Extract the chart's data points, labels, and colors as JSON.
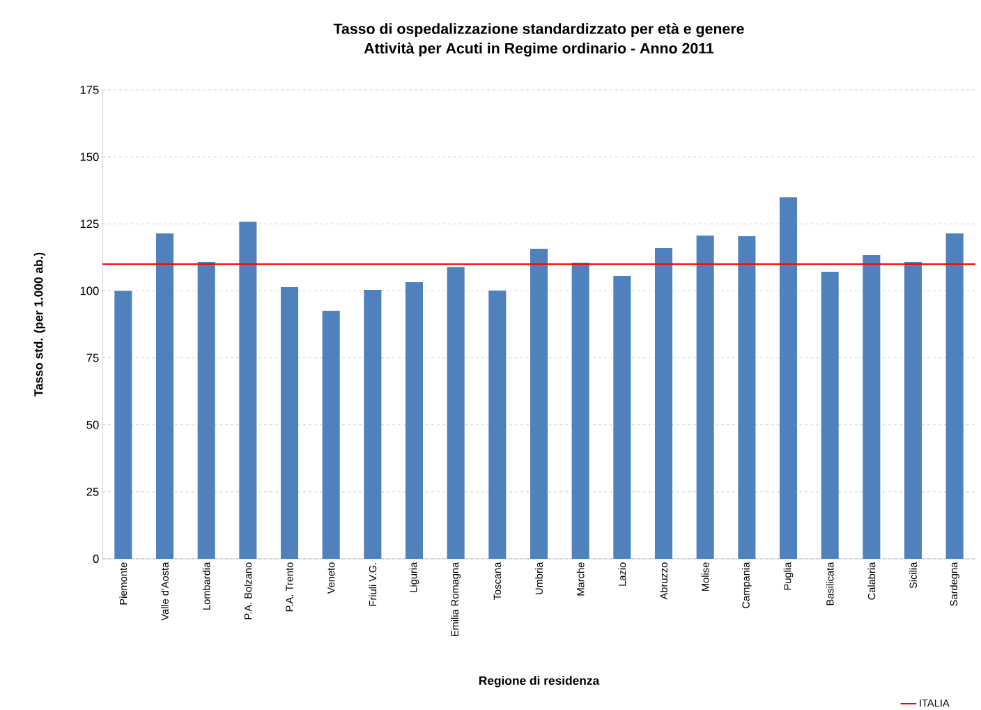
{
  "chart_data": {
    "type": "bar",
    "title": "Tasso di ospedalizzazione standardizzato per età e genere",
    "subtitle": "Attività per Acuti in Regime ordinario - Anno 2011",
    "xlabel": "Regione di residenza",
    "ylabel": "Tasso std. (per 1.000 ab.)",
    "categories": [
      "Piemonte",
      "Valle d'Aosta",
      "Lombardia",
      "P.A. Bolzano",
      "P.A. Trento",
      "Veneto",
      "Friuli V.G.",
      "Liguria",
      "Emilia Romagna",
      "Toscana",
      "Umbria",
      "Marche",
      "Lazio",
      "Abruzzo",
      "Molise",
      "Campania",
      "Puglia",
      "Basilicata",
      "Calabria",
      "Sicilia",
      "Sardegna"
    ],
    "values": [
      100,
      121.4,
      110.8,
      125.8,
      101.4,
      92.6,
      100.4,
      103.2,
      108.9,
      100.1,
      115.7,
      110.5,
      105.6,
      116,
      120.6,
      120.4,
      134.9,
      107.1,
      113.4,
      110.8,
      121.4
    ],
    "color": "#4f81bd",
    "ylim": [
      0,
      175
    ],
    "yticks": [
      0,
      25,
      50,
      75,
      100,
      125,
      150,
      175
    ],
    "grid": "y",
    "ref_lines": [
      {
        "axis": "y",
        "value": 110,
        "label": "ITALIA",
        "color": "#ff0000"
      }
    ],
    "legend": "bottom right"
  }
}
